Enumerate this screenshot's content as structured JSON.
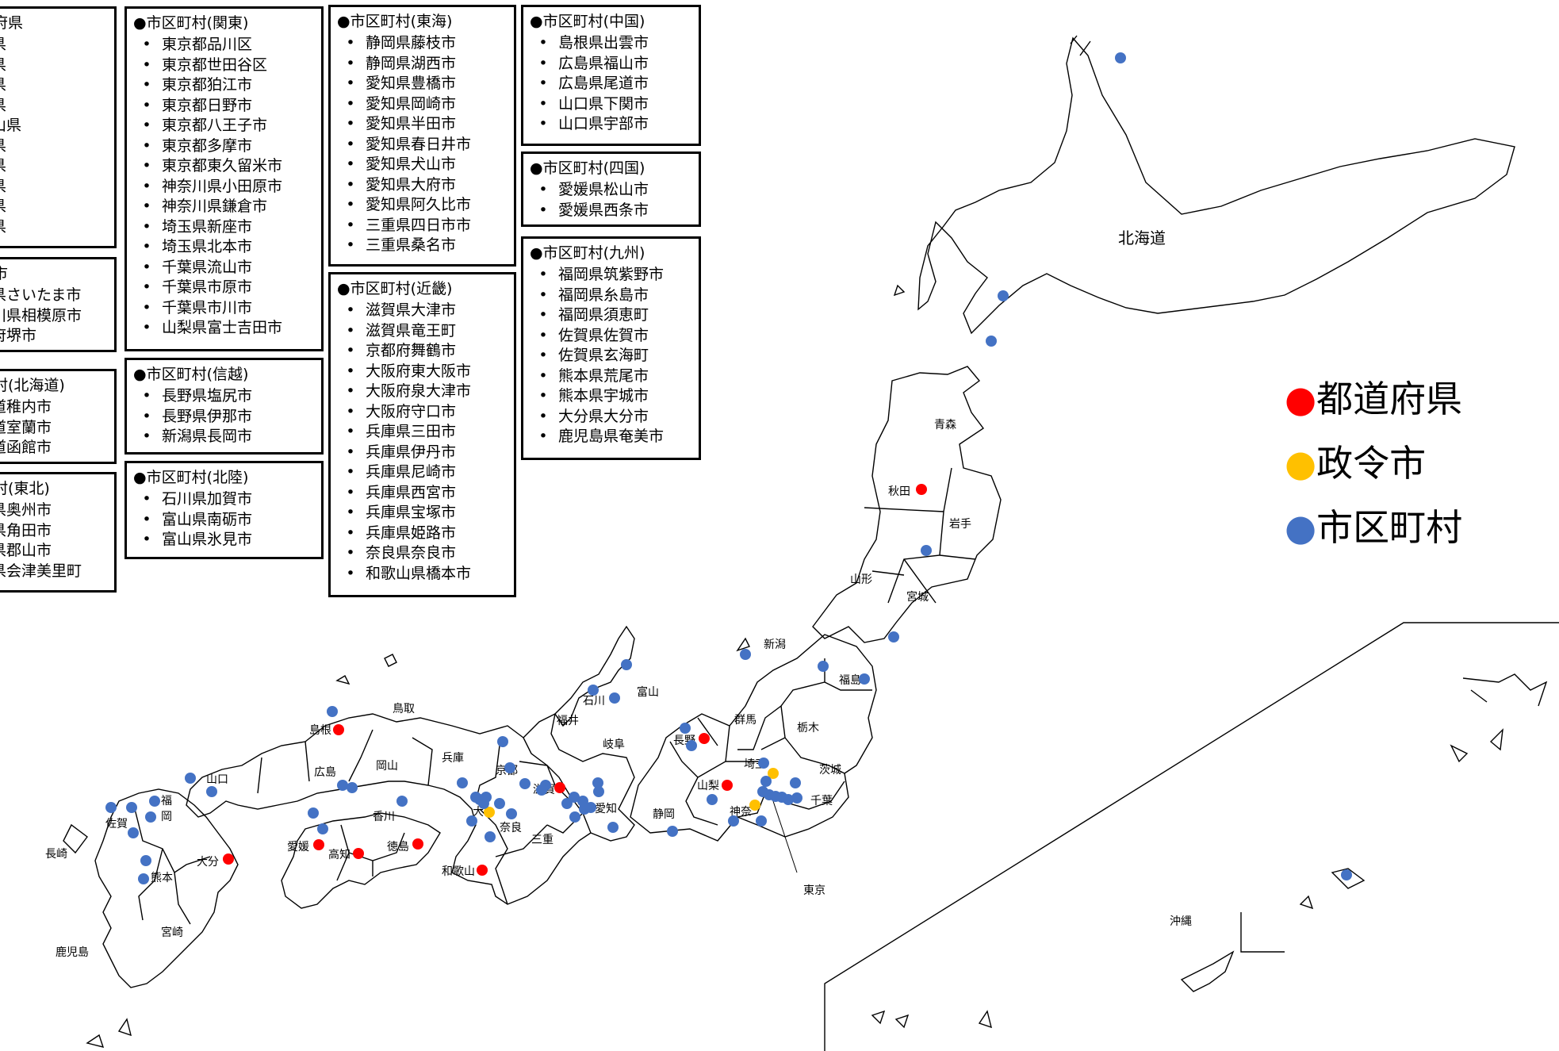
{
  "legend": [
    {
      "label": "都道府県",
      "color": "#ff0000"
    },
    {
      "label": "政令市",
      "color": "#ffc000"
    },
    {
      "label": "市区町村",
      "color": "#4472c4"
    }
  ],
  "boxes": {
    "prefectures": {
      "title": "府県",
      "items": [
        "県",
        "県",
        "県",
        "県",
        "山県",
        "県",
        "県",
        "県",
        "県",
        "県"
      ]
    },
    "designated": {
      "title": "市",
      "items": [
        "県さいたま市",
        "川県相模原市",
        "府堺市"
      ]
    },
    "hokkaido": {
      "title": "村(北海道)",
      "items": [
        "道稚内市",
        "道室蘭市",
        "道函館市"
      ]
    },
    "tohoku": {
      "title": "村(東北)",
      "items": [
        "県奥州市",
        "県角田市",
        "県郡山市",
        "県会津美里町"
      ]
    },
    "kanto": {
      "title": "●市区町村(関東)",
      "items": [
        "東京都品川区",
        "東京都世田谷区",
        "東京都狛江市",
        "東京都日野市",
        "東京都八王子市",
        "東京都多摩市",
        "東京都東久留米市",
        "神奈川県小田原市",
        "神奈川県鎌倉市",
        "埼玉県新座市",
        "埼玉県北本市",
        "千葉県流山市",
        "千葉県市原市",
        "千葉県市川市",
        "山梨県富士吉田市"
      ]
    },
    "shinetsu": {
      "title": "●市区町村(信越)",
      "items": [
        "長野県塩尻市",
        "長野県伊那市",
        "新潟県長岡市"
      ]
    },
    "hokuriku": {
      "title": "●市区町村(北陸)",
      "items": [
        "石川県加賀市",
        "富山県南砺市",
        "富山県氷見市"
      ]
    },
    "tokai": {
      "title": "●市区町村(東海)",
      "items": [
        "静岡県藤枝市",
        "静岡県湖西市",
        "愛知県豊橋市",
        "愛知県岡崎市",
        "愛知県半田市",
        "愛知県春日井市",
        "愛知県犬山市",
        "愛知県大府市",
        "愛知県阿久比市",
        "三重県四日市市",
        "三重県桑名市"
      ]
    },
    "kinki": {
      "title": "●市区町村(近畿)",
      "items": [
        "滋賀県大津市",
        "滋賀県竜王町",
        "京都府舞鶴市",
        "大阪府東大阪市",
        "大阪府泉大津市",
        "大阪府守口市",
        "兵庫県三田市",
        "兵庫県伊丹市",
        "兵庫県尼崎市",
        "兵庫県西宮市",
        "兵庫県宝塚市",
        "兵庫県姫路市",
        "奈良県奈良市",
        "和歌山県橋本市"
      ]
    },
    "chugoku": {
      "title": "●市区町村(中国)",
      "items": [
        "島根県出雲市",
        "広島県福山市",
        "広島県尾道市",
        "山口県下関市",
        "山口県宇部市"
      ]
    },
    "shikoku": {
      "title": "●市区町村(四国)",
      "items": [
        "愛媛県松山市",
        "愛媛県西条市"
      ]
    },
    "kyushu": {
      "title": "●市区町村(九州)",
      "items": [
        "福岡県筑紫野市",
        "福岡県糸島市",
        "福岡県須恵町",
        "佐賀県佐賀市",
        "佐賀県玄海町",
        "熊本県荒尾市",
        "熊本県宇城市",
        "大分県大分市",
        "鹿児島県奄美市"
      ]
    }
  },
  "map_labels": {
    "hokkaido": "北海道",
    "aomori": "青森",
    "akita": "秋田",
    "iwate": "岩手",
    "yamagata": "山形",
    "miyagi": "宮城",
    "niigata": "新潟",
    "fukushima": "福島",
    "toyama": "富山",
    "ishikawa": "石川",
    "fukui": "福井",
    "gunma": "群馬",
    "tochigi": "栃木",
    "nagano": "長野",
    "gifu": "岐阜",
    "saitama": "埼玉",
    "ibaraki": "茨城",
    "yamanashi": "山梨",
    "chiba": "千葉",
    "kanagawa": "神奈",
    "tokyo": "東京",
    "shizuoka": "静岡",
    "aichi": "愛知",
    "mie": "三重",
    "shiga": "滋賀",
    "kyoto": "京都",
    "nara": "奈良",
    "osaka": "大",
    "wakayama": "和歌山",
    "hyogo": "兵庫",
    "tottori": "鳥取",
    "shimane": "島根",
    "okayama": "岡山",
    "hiroshima": "広島",
    "yamaguchi": "山口",
    "kagawa": "香川",
    "tokushima": "徳島",
    "ehime": "愛媛",
    "kochi": "高知",
    "fukuoka1": "福",
    "fukuoka2": "岡",
    "saga": "佐賀",
    "nagasaki": "長崎",
    "kumamoto": "熊本",
    "oita": "大分",
    "miyazaki": "宮崎",
    "kagoshima": "鹿児島",
    "okinawa": "沖縄"
  }
}
